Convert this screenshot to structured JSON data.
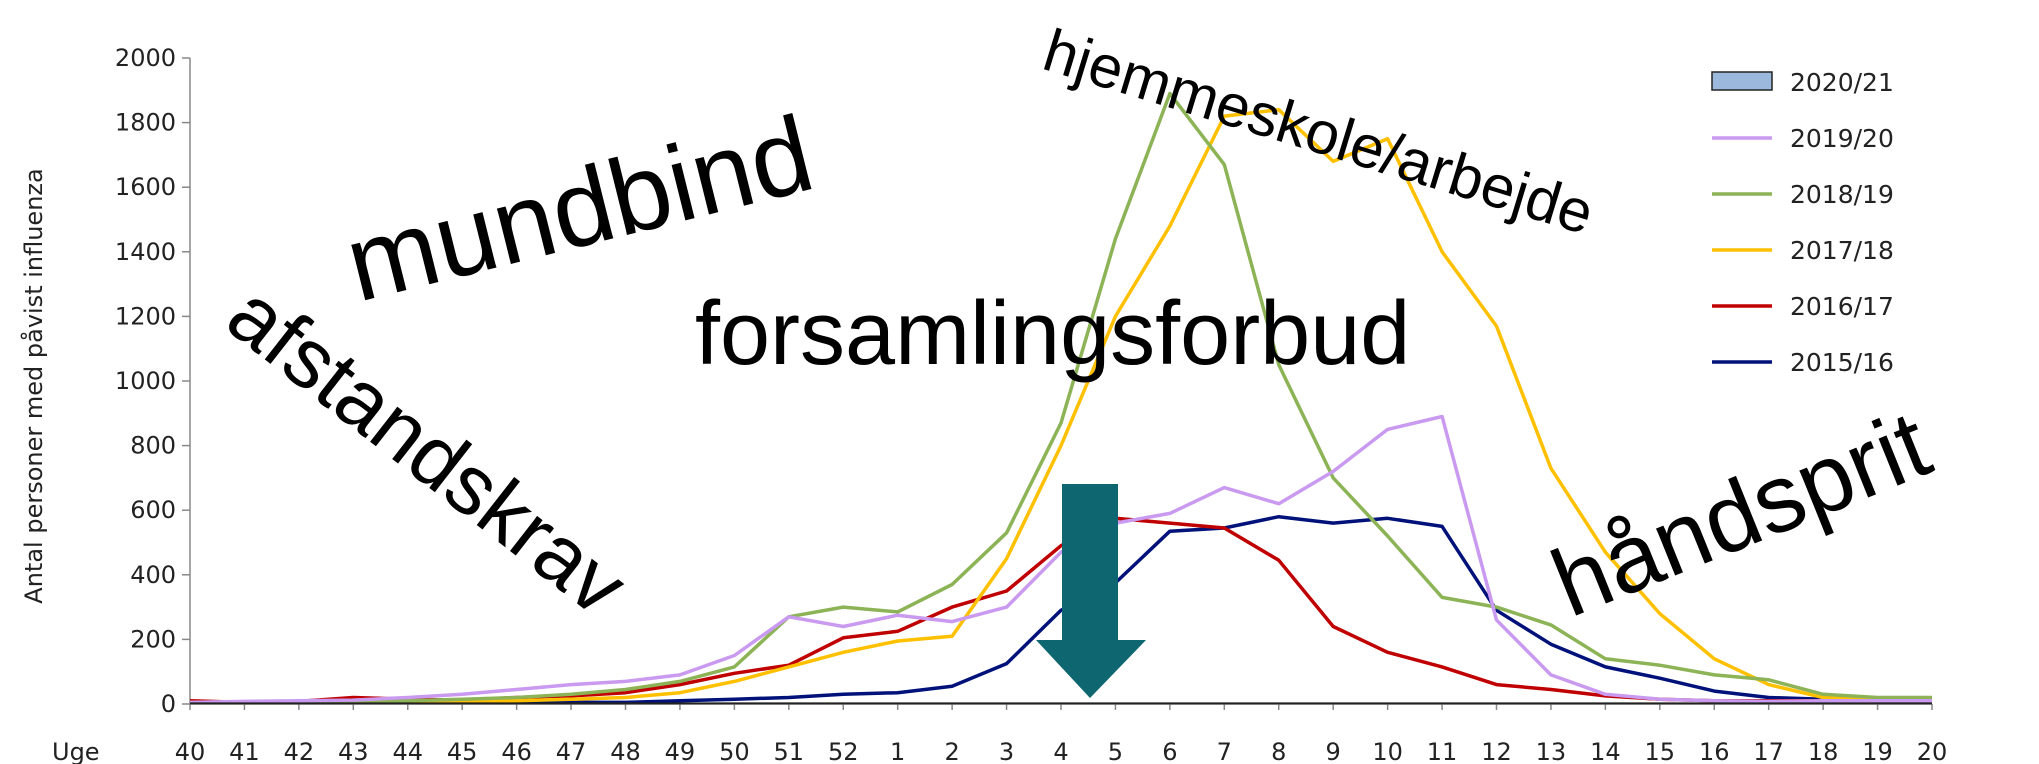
{
  "chart_data": {
    "type": "line",
    "ylabel": "Antal personer med påvist influenza",
    "xlabel": "Uge",
    "ylim": [
      0,
      2000
    ],
    "yticks": [
      0,
      200,
      400,
      600,
      800,
      1000,
      1200,
      1400,
      1600,
      1800,
      2000
    ],
    "categories": [
      "40",
      "41",
      "42",
      "43",
      "44",
      "45",
      "46",
      "47",
      "48",
      "49",
      "50",
      "51",
      "52",
      "1",
      "2",
      "3",
      "4",
      "5",
      "6",
      "7",
      "8",
      "9",
      "10",
      "11",
      "12",
      "13",
      "14",
      "15",
      "16",
      "17",
      "18",
      "19",
      "20"
    ],
    "legend_position": "top-right",
    "series": [
      {
        "name": "2020/21",
        "color": "#222222",
        "legend_style": "box",
        "box_fill": "#9cb8dc",
        "values": [
          2,
          2,
          2,
          2,
          2,
          2,
          2,
          2,
          2,
          2,
          2,
          2,
          2,
          2,
          2,
          2,
          2,
          2,
          2,
          2,
          2,
          2,
          2,
          2,
          2,
          2,
          2,
          2,
          2,
          2,
          2,
          2,
          2
        ]
      },
      {
        "name": "2019/20",
        "color": "#c99af0",
        "values": [
          5,
          8,
          10,
          12,
          20,
          30,
          45,
          60,
          70,
          90,
          150,
          270,
          240,
          275,
          255,
          300,
          470,
          560,
          590,
          670,
          620,
          720,
          850,
          890,
          260,
          90,
          30,
          15,
          10,
          8,
          10,
          10,
          10
        ]
      },
      {
        "name": "2018/19",
        "color": "#8cb355",
        "values": [
          5,
          5,
          5,
          8,
          10,
          15,
          20,
          30,
          45,
          70,
          115,
          270,
          300,
          285,
          370,
          530,
          870,
          1440,
          1890,
          1670,
          1050,
          700,
          520,
          330,
          300,
          245,
          140,
          120,
          90,
          75,
          30,
          20,
          20
        ]
      },
      {
        "name": "2017/18",
        "color": "#ffc000",
        "values": [
          5,
          5,
          5,
          5,
          5,
          8,
          10,
          15,
          20,
          35,
          70,
          115,
          160,
          195,
          210,
          450,
          800,
          1200,
          1480,
          1820,
          1840,
          1680,
          1750,
          1400,
          1170,
          730,
          470,
          280,
          140,
          60,
          20,
          15,
          10
        ]
      },
      {
        "name": "2016/17",
        "color": "#c00000",
        "values": [
          10,
          5,
          8,
          20,
          15,
          12,
          20,
          25,
          35,
          60,
          95,
          120,
          205,
          225,
          300,
          350,
          490,
          575,
          560,
          545,
          445,
          240,
          160,
          115,
          60,
          45,
          25,
          15,
          10,
          10,
          10,
          10,
          10
        ]
      },
      {
        "name": "2015/16",
        "color": "#00127a",
        "values": [
          5,
          5,
          5,
          5,
          5,
          5,
          5,
          5,
          5,
          10,
          15,
          20,
          30,
          35,
          55,
          125,
          290,
          375,
          535,
          545,
          580,
          560,
          575,
          550,
          290,
          185,
          115,
          80,
          40,
          20,
          15,
          15,
          10
        ]
      }
    ]
  },
  "annotations": {
    "words": [
      "mundbind",
      "afstandskrav",
      "forsamlingsforbud",
      "hjemmeskole/arbejde",
      "håndsprit"
    ],
    "arrow_color": "#0e6670"
  }
}
